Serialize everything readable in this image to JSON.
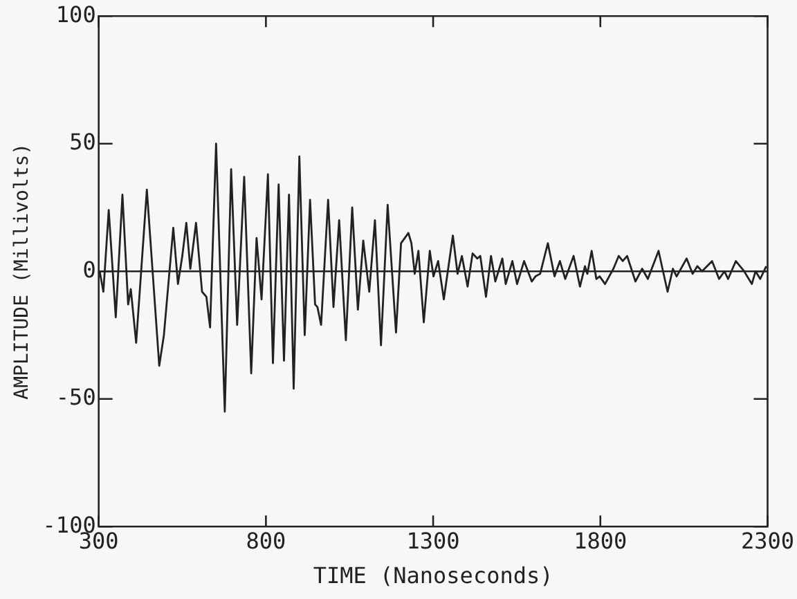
{
  "chart_data": {
    "type": "line",
    "xlabel": "TIME (Nanoseconds)",
    "ylabel": "AMPLITUDE (Millivolts)",
    "xlim": [
      300,
      2300
    ],
    "xticks": [
      300,
      800,
      1300,
      1800,
      2300
    ],
    "ylim": [
      -100,
      100
    ],
    "yticks": [
      -100,
      -50,
      0,
      50,
      100
    ],
    "grid": false,
    "legend": false,
    "marker": "none",
    "line_style": "solid",
    "ref_lines": [
      {
        "axis": "y",
        "value": 0,
        "color": "#222222"
      }
    ],
    "series": [
      {
        "color": "#222222",
        "x": [
          303,
          314,
          330,
          351,
          371,
          388,
          396,
          412,
          444,
          481,
          495,
          523,
          537,
          550,
          562,
          574,
          591,
          609,
          622,
          633,
          651,
          677,
          696,
          714,
          735,
          756,
          772,
          787,
          806,
          821,
          838,
          854,
          869,
          883,
          900,
          916,
          932,
          947,
          954,
          965,
          986,
          1002,
          1019,
          1039,
          1058,
          1075,
          1091,
          1109,
          1126,
          1144,
          1164,
          1189,
          1204,
          1226,
          1235,
          1245,
          1256,
          1272,
          1290,
          1301,
          1315,
          1332,
          1359,
          1373,
          1386,
          1403,
          1418,
          1432,
          1441,
          1458,
          1473,
          1486,
          1507,
          1517,
          1537,
          1551,
          1572,
          1595,
          1606,
          1620,
          1643,
          1663,
          1679,
          1695,
          1720,
          1739,
          1754,
          1761,
          1774,
          1788,
          1798,
          1814,
          1839,
          1855,
          1867,
          1880,
          1905,
          1925,
          1942,
          1974,
          2001,
          2017,
          2028,
          2058,
          2076,
          2090,
          2104,
          2134,
          2155,
          2171,
          2182,
          2205,
          2230,
          2253,
          2264,
          2278,
          2296
        ],
        "values": [
          0,
          -8,
          24,
          -18,
          30,
          -13,
          -7,
          -28,
          32,
          -37,
          -25,
          17,
          -5,
          6,
          19,
          1,
          19,
          -8,
          -10,
          -22,
          50,
          -55,
          40,
          -21,
          37,
          -40,
          13,
          -11,
          38,
          -36,
          34,
          -35,
          30,
          -46,
          45,
          -25,
          28,
          -13,
          -14,
          -21,
          28,
          -14,
          20,
          -27,
          25,
          -15,
          12,
          -8,
          20,
          -29,
          26,
          -24,
          11,
          15,
          11,
          -1,
          8,
          -20,
          8,
          -2,
          4,
          -11,
          14,
          -1,
          6,
          -6,
          7,
          5,
          6,
          -10,
          6,
          -4,
          5,
          -5,
          4,
          -5,
          4,
          -4,
          -2,
          -1,
          11,
          -2,
          4,
          -3,
          6,
          -6,
          2,
          -1,
          8,
          -3,
          -2,
          -5,
          1,
          6,
          4,
          6,
          -4,
          1,
          -3,
          8,
          -8,
          1,
          -2,
          5,
          -1,
          2,
          0,
          4,
          -3,
          0,
          -3,
          4,
          0,
          -5,
          0,
          -3,
          2
        ]
      }
    ]
  }
}
